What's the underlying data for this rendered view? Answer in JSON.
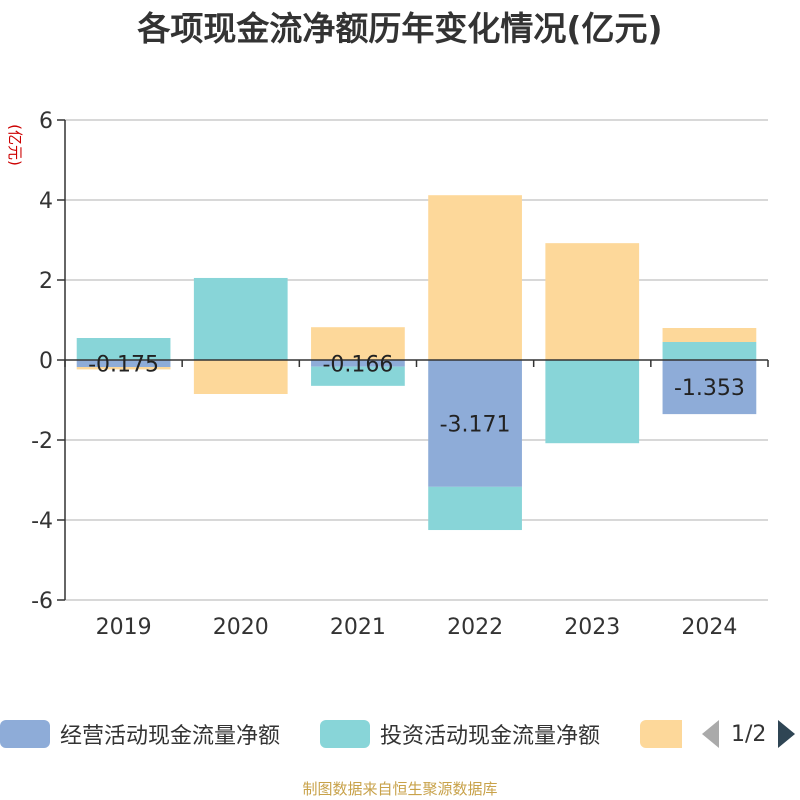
{
  "title": "各项现金流净额历年变化情况(亿元)",
  "source_note": "制图数据来自恒生聚源数据库",
  "legend": {
    "items": [
      {
        "label": "经营活动现金流量净额",
        "color": "#8eacd8"
      },
      {
        "label": "投资活动现金流量净额",
        "color": "#88d5d8"
      },
      {
        "label": "",
        "color": "#fdd89a"
      }
    ],
    "page_indicator": "1/2"
  },
  "chart_data": {
    "type": "bar",
    "stacked": true,
    "categories": [
      "2019",
      "2020",
      "2021",
      "2022",
      "2023",
      "2024"
    ],
    "ylabel": "(亿元)",
    "ylim": [
      -6,
      6
    ],
    "yticks": [
      6,
      4,
      2,
      0,
      -2,
      -4,
      -6
    ],
    "grid": true,
    "legend_position": "bottom",
    "series": [
      {
        "name": "经营活动现金流量净额",
        "color": "#8eacd8",
        "values": [
          -0.175,
          0.001,
          -0.166,
          -3.171,
          0.001,
          -1.353
        ],
        "labels": [
          "-0.175",
          "",
          "-0.166",
          "-3.171",
          "",
          "-1.353"
        ]
      },
      {
        "name": "投资活动现金流量净额",
        "color": "#88d5d8",
        "values": [
          0.55,
          2.05,
          -0.48,
          -1.08,
          -2.08,
          0.45
        ]
      },
      {
        "color": "#fdd89a",
        "values": [
          -0.06,
          -0.85,
          0.82,
          4.12,
          2.92,
          0.35
        ]
      }
    ]
  }
}
